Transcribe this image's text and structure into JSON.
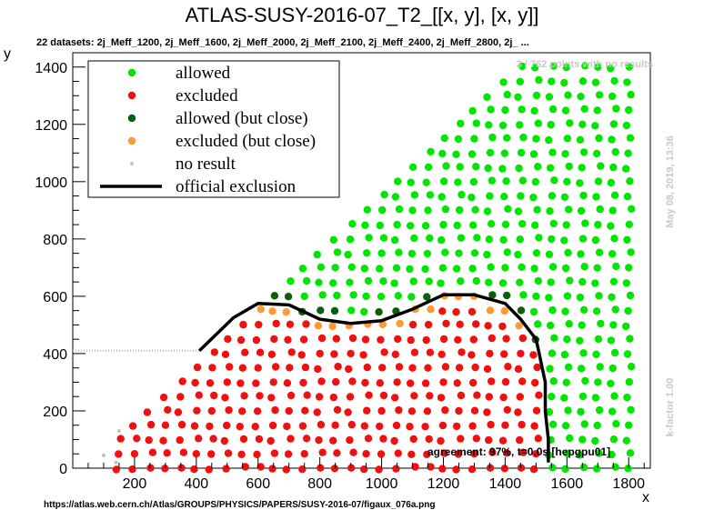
{
  "header": {
    "title": "ATLAS-SUSY-2016-07_T2_[[x, y], [x, y]]",
    "datasets": "22 datasets: 2j_Meff_1200, 2j_Meff_1600, 2j_Meff_2000, 2j_Meff_2100, 2j_Meff_2400, 2j_Meff_2800, 2j_ ..."
  },
  "annotations": {
    "no_results": "3 / 762 points with no results",
    "date": "May 08, 2019, 13:36",
    "kfactor": "k-factor 1.00",
    "agreement": "agreement: 97%, t=0.0s [hepgpu01]",
    "url": "https://atlas.web.cern.ch/Atlas/GROUPS/PHYSICS/PAPERS/SUSY-2016-07/figaux_076a.png"
  },
  "colors": {
    "allowed": "#00e600",
    "excluded": "#f01010",
    "allowed_close": "#0a5f0a",
    "excluded_close": "#ff9933",
    "no_result": "#c0c0c0",
    "official": "#000000"
  },
  "chart_data": {
    "type": "scatter",
    "xlabel": "x",
    "ylabel": "y",
    "xlim": [
      0,
      1870
    ],
    "ylim": [
      0,
      1450
    ],
    "xticks": [
      200,
      400,
      600,
      800,
      1000,
      1200,
      1400,
      1600,
      1800
    ],
    "yticks": [
      0,
      200,
      400,
      600,
      800,
      1000,
      1200,
      1400
    ],
    "legend": {
      "placement": "top-left",
      "entries": [
        {
          "key": "allowed",
          "label": "allowed",
          "marker": "dot"
        },
        {
          "key": "excluded",
          "label": "excluded",
          "marker": "dot"
        },
        {
          "key": "allowed_close",
          "label": "allowed (but close)",
          "marker": "dot"
        },
        {
          "key": "excluded_close",
          "label": "excluded (but close)",
          "marker": "dot"
        },
        {
          "key": "no_result",
          "label": "no result",
          "marker": "small-dot"
        },
        {
          "key": "official",
          "label": "official exclusion",
          "marker": "line"
        }
      ]
    },
    "official_exclusion": {
      "x": [
        410,
        520,
        600,
        700,
        800,
        900,
        1000,
        1100,
        1200,
        1300,
        1400,
        1450,
        1500,
        1510,
        1520,
        1530,
        1530,
        1540,
        1540
      ],
      "y": [
        410,
        525,
        575,
        570,
        520,
        505,
        515,
        555,
        605,
        605,
        575,
        520,
        450,
        400,
        350,
        300,
        200,
        100,
        20
      ]
    },
    "no_result_points": {
      "x": [
        100,
        150,
        140
      ],
      "y": [
        45,
        130,
        20
      ]
    },
    "grid_rule": {
      "x_start": 150,
      "x_step": 50,
      "x_end": 1800,
      "y_start": 0,
      "y_step": 50,
      "y_max": 1400,
      "y_max_offset_from_x": -50,
      "official_line_role": "boundary between excluded and allowed"
    }
  }
}
